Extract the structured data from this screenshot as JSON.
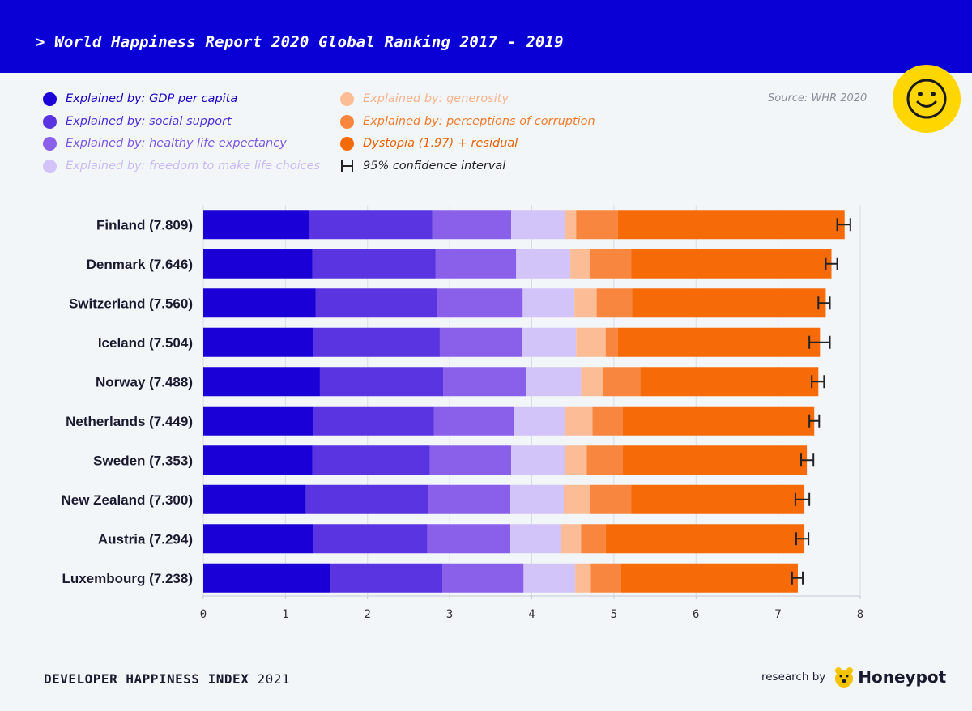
{
  "header": {
    "title": "> World Happiness Report 2020 Global Ranking 2017 - 2019",
    "background": "#0a00d6"
  },
  "source": "Source: WHR 2020",
  "legend": [
    {
      "label": "Explained by: GDP per capita",
      "color": "#1a00d6",
      "text_color": "#1a00c4"
    },
    {
      "label": "Explained by: social support",
      "color": "#5a34e0",
      "text_color": "#4b2fd6"
    },
    {
      "label": "Explained by: healthy life expectancy",
      "color": "#8a60eb",
      "text_color": "#7c58e0"
    },
    {
      "label": "Explained by: freedom to make life choices",
      "color": "#d2c3f8",
      "text_color": "#c9baf3"
    },
    {
      "label": "Explained by: generosity",
      "color": "#fbbc96",
      "text_color": "#f6b38e"
    },
    {
      "label": "Explained by: perceptions of corruption",
      "color": "#f9863e",
      "text_color": "#f27c2e"
    },
    {
      "label": "Dystopia (1.97) + residual",
      "color": "#f66a08",
      "text_color": "#e86100"
    },
    {
      "label": "95% confidence interval",
      "color": "#222222",
      "text_color": "#222222",
      "icon": "error-bar-icon"
    }
  ],
  "chart_data": {
    "type": "bar",
    "orientation": "horizontal",
    "stacked": true,
    "title": "World Happiness Report 2020 Global Ranking 2017 - 2019",
    "xlim": [
      0,
      8
    ],
    "xticks": [
      "0",
      "1",
      "2",
      "3",
      "4",
      "5",
      "6",
      "7",
      "8"
    ],
    "grid": true,
    "categories": [
      "Finland (7.809)",
      "Denmark (7.646)",
      "Switzerland (7.560)",
      "Iceland (7.504)",
      "Norway (7.488)",
      "Netherlands (7.449)",
      "Sweden (7.353)",
      "New Zealand (7.300)",
      "Austria (7.294)",
      "Luxembourg (7.238)"
    ],
    "scores": [
      7.809,
      7.646,
      7.56,
      7.504,
      7.488,
      7.449,
      7.353,
      7.3,
      7.294,
      7.238
    ],
    "series": [
      {
        "name": "Explained by: GDP per capita",
        "color": "#1a00d6",
        "values": [
          1.29,
          1.33,
          1.37,
          1.34,
          1.42,
          1.34,
          1.33,
          1.25,
          1.34,
          1.54
        ]
      },
      {
        "name": "Explained by: social support",
        "color": "#5a34e0",
        "values": [
          1.5,
          1.5,
          1.48,
          1.54,
          1.5,
          1.47,
          1.43,
          1.49,
          1.39,
          1.37
        ]
      },
      {
        "name": "Explained by: healthy life expectancy",
        "color": "#8a60eb",
        "values": [
          0.96,
          0.98,
          1.04,
          1.0,
          1.01,
          0.97,
          0.99,
          1.0,
          1.01,
          0.99
        ]
      },
      {
        "name": "Explained by: freedom to make life choices",
        "color": "#d2c3f8",
        "values": [
          0.66,
          0.66,
          0.63,
          0.66,
          0.67,
          0.63,
          0.65,
          0.65,
          0.61,
          0.63
        ]
      },
      {
        "name": "Explained by: generosity",
        "color": "#fbbc96",
        "values": [
          0.13,
          0.24,
          0.27,
          0.36,
          0.27,
          0.33,
          0.27,
          0.32,
          0.25,
          0.19
        ]
      },
      {
        "name": "Explained by: perceptions of corruption",
        "color": "#f9863e",
        "values": [
          0.51,
          0.5,
          0.43,
          0.15,
          0.45,
          0.37,
          0.44,
          0.5,
          0.3,
          0.37
        ]
      },
      {
        "name": "Dystopia (1.97) + residual",
        "color": "#f66a08",
        "values": [
          2.76,
          2.44,
          2.36,
          2.46,
          2.17,
          2.33,
          2.24,
          2.11,
          2.42,
          2.15
        ]
      }
    ],
    "ci": [
      [
        7.72,
        7.88
      ],
      [
        7.58,
        7.72
      ],
      [
        7.49,
        7.63
      ],
      [
        7.38,
        7.63
      ],
      [
        7.41,
        7.56
      ],
      [
        7.38,
        7.5
      ],
      [
        7.28,
        7.43
      ],
      [
        7.21,
        7.38
      ],
      [
        7.22,
        7.37
      ],
      [
        7.17,
        7.3
      ]
    ]
  },
  "footer": {
    "index_bold": "DEVELOPER HAPPINESS INDEX",
    "index_year": "2021",
    "research_by": "research by",
    "brand": "Honeypot"
  }
}
